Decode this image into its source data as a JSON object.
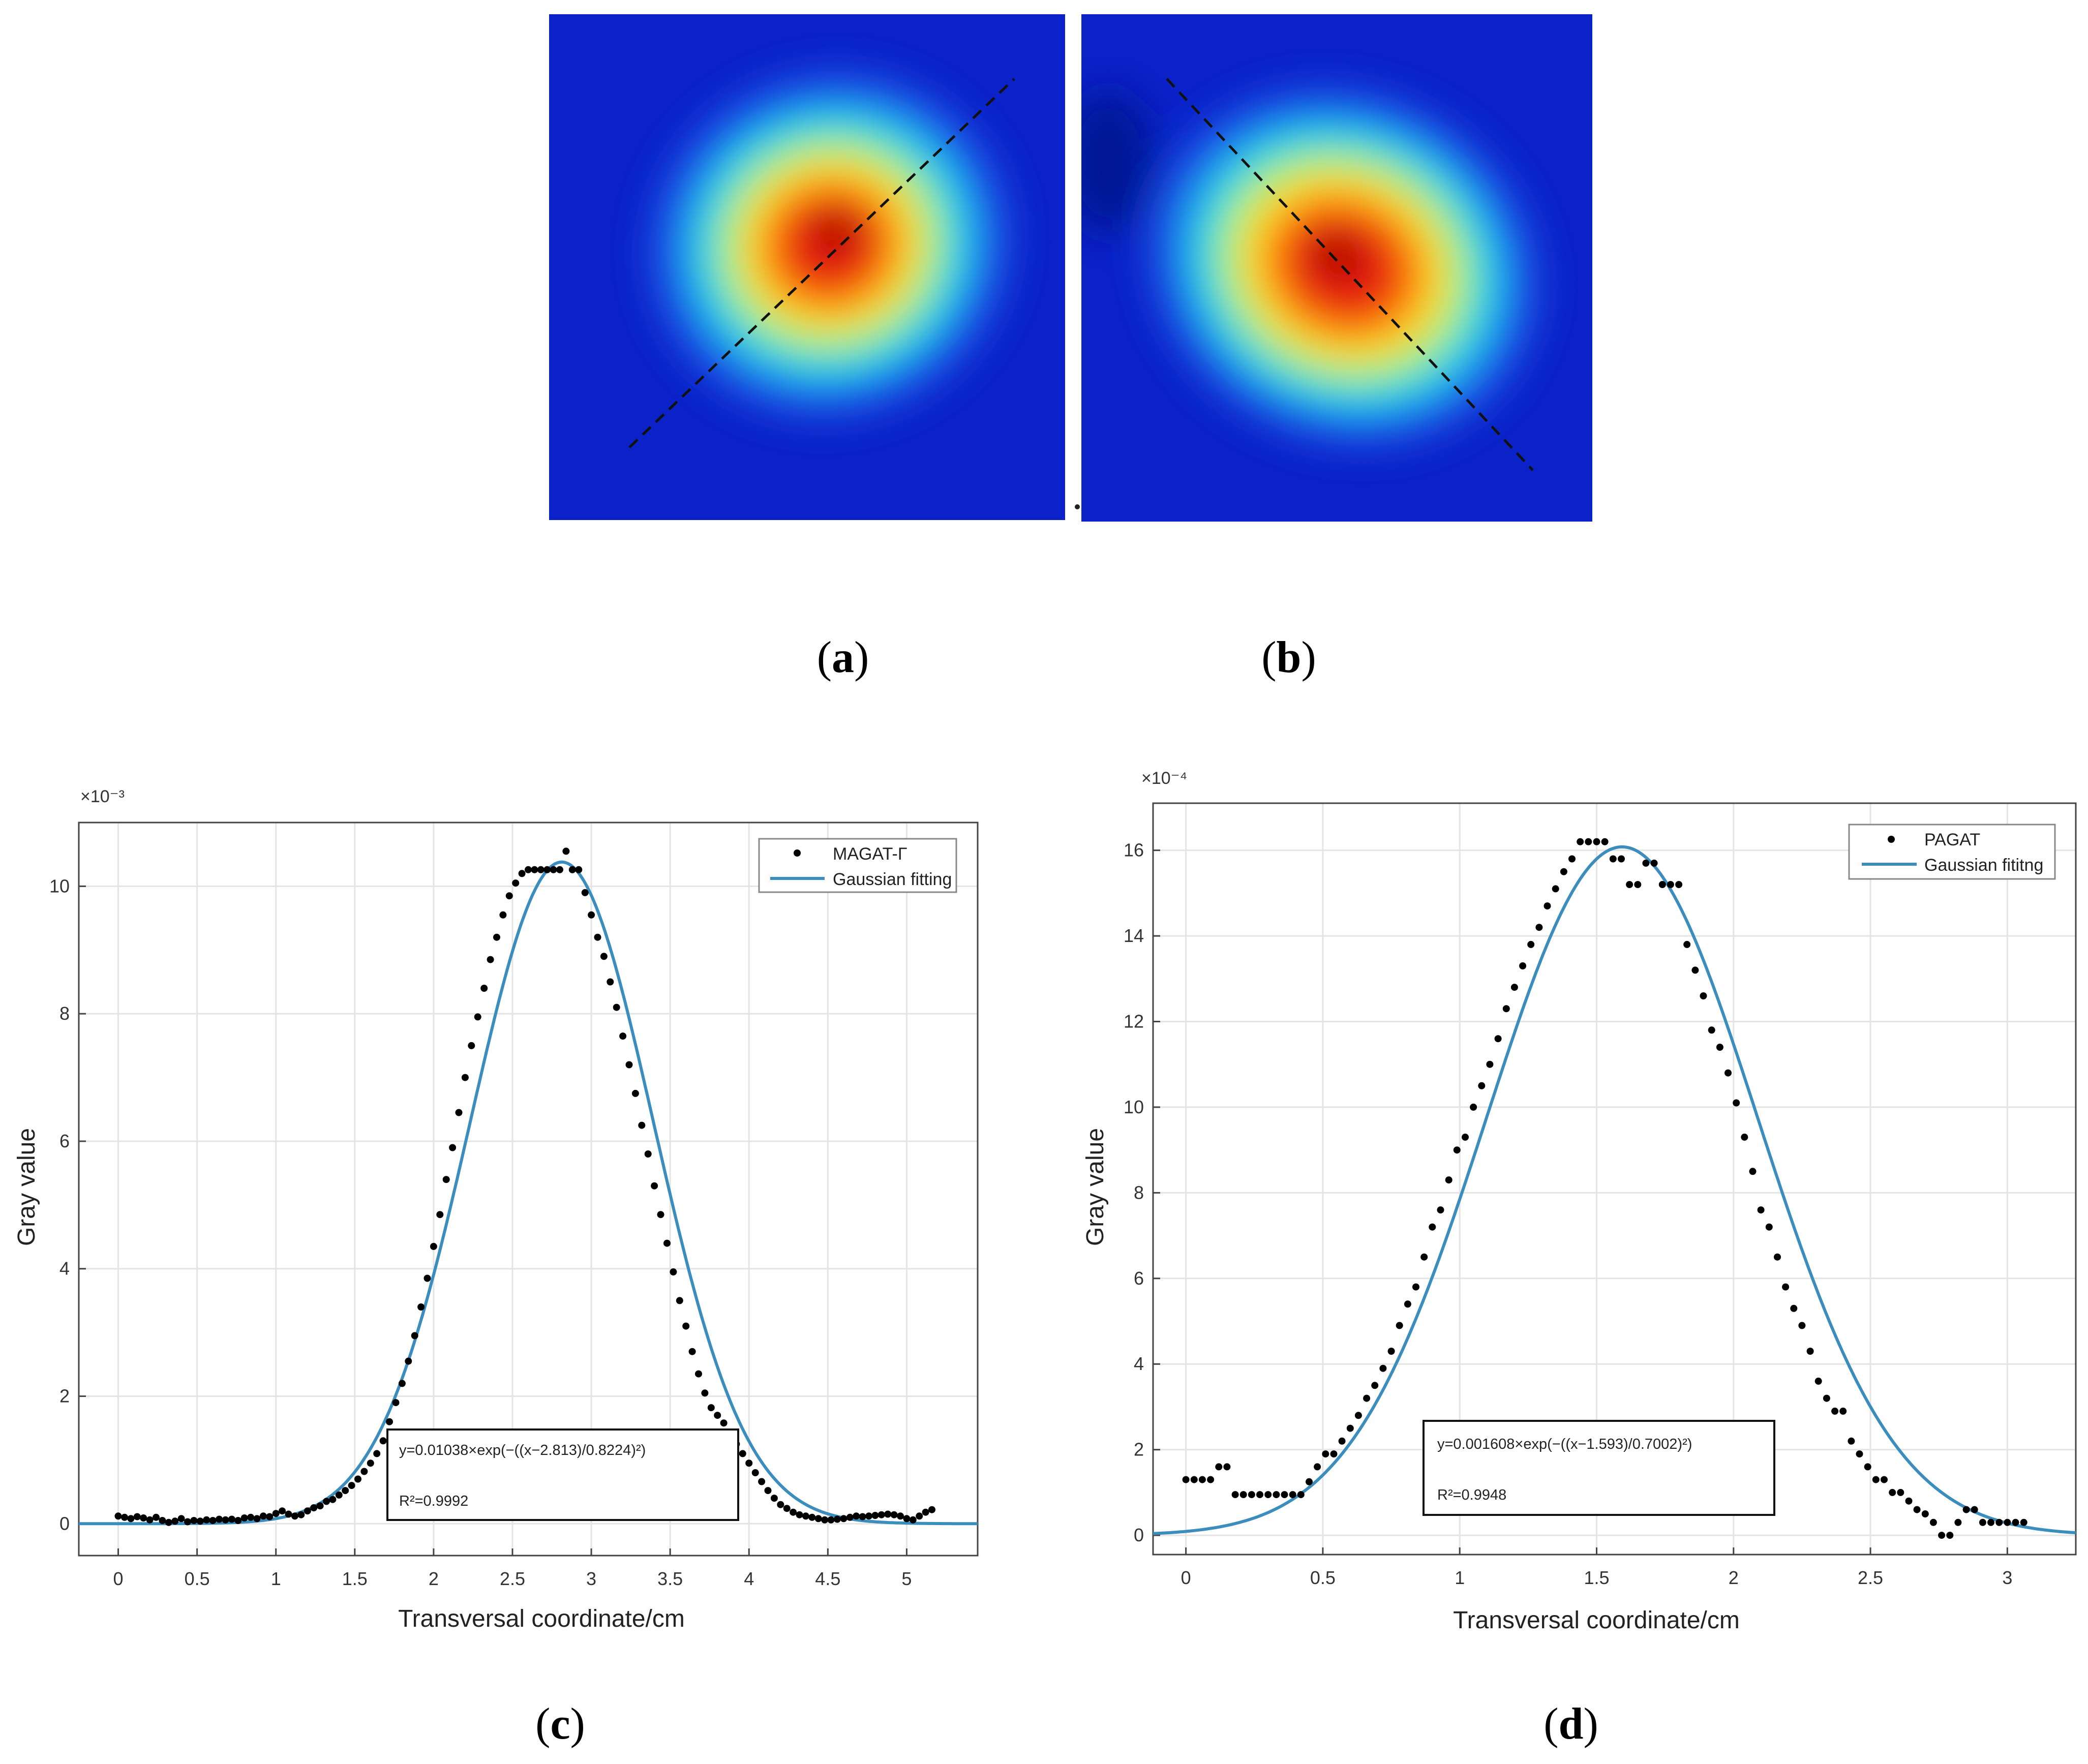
{
  "figure": {
    "panels": [
      {
        "id": "a",
        "label": "(a)",
        "letter": "a"
      },
      {
        "id": "b",
        "label": "(b)",
        "letter": "b"
      },
      {
        "id": "c",
        "label": "(c)",
        "letter": "c"
      },
      {
        "id": "d",
        "label": "(d)",
        "letter": "d"
      }
    ]
  },
  "heatmaps": [
    {
      "id": "a",
      "center": [
        0.545,
        0.455
      ],
      "radii": [
        0.25,
        0.28
      ],
      "rotation_deg": -20,
      "line": "diagonal-up"
    },
    {
      "id": "b",
      "center": [
        0.52,
        0.5
      ],
      "radii": [
        0.28,
        0.24
      ],
      "rotation_deg": 25,
      "line": "diagonal-down"
    }
  ],
  "colors": {
    "fit_line": "#3b8dbd",
    "points": "#000000",
    "grid": "#e4e4e4",
    "heat_low": "#0a22c8",
    "heat_high": "#cc0000"
  },
  "chart_data": [
    {
      "id": "c",
      "type": "scatter",
      "exponent_label": "×10⁻³",
      "xlabel": "Transversal coordinate/cm",
      "ylabel": "Gray value",
      "xlim": [
        -0.25,
        5.45
      ],
      "ylim": [
        -0.5,
        11.0
      ],
      "xticks": [
        0,
        0.5,
        1,
        1.5,
        2,
        2.5,
        3,
        3.5,
        4,
        4.5,
        5
      ],
      "xtick_labels": [
        "0",
        "0.5",
        "1",
        "1.5",
        "2",
        "2.5",
        "3",
        "3.5",
        "4",
        "4.5",
        "5"
      ],
      "yticks": [
        0,
        2,
        4,
        6,
        8,
        10
      ],
      "ytick_labels": [
        "0",
        "2",
        "4",
        "6",
        "8",
        "10"
      ],
      "legend": [
        "MAGAT-Γ",
        "Gaussian fitting"
      ],
      "equation": "y=0.01038×exp(−((x−2.813)/0.8224)²)",
      "r2": "R²=0.9992",
      "fit": {
        "a": 10.38,
        "b": 2.813,
        "c": 0.8224
      },
      "series": [
        {
          "name": "MAGAT-Γ",
          "x": [
            0.0,
            0.04,
            0.08,
            0.12,
            0.16,
            0.2,
            0.24,
            0.28,
            0.32,
            0.36,
            0.4,
            0.44,
            0.48,
            0.52,
            0.56,
            0.6,
            0.64,
            0.68,
            0.72,
            0.76,
            0.8,
            0.84,
            0.88,
            0.92,
            0.96,
            1.0,
            1.04,
            1.08,
            1.12,
            1.16,
            1.2,
            1.24,
            1.28,
            1.32,
            1.36,
            1.4,
            1.44,
            1.48,
            1.52,
            1.56,
            1.6,
            1.64,
            1.68,
            1.72,
            1.76,
            1.8,
            1.84,
            1.88,
            1.92,
            1.96,
            2.0,
            2.04,
            2.08,
            2.12,
            2.16,
            2.2,
            2.24,
            2.28,
            2.32,
            2.36,
            2.4,
            2.44,
            2.48,
            2.52,
            2.56,
            2.6,
            2.64,
            2.68,
            2.72,
            2.76,
            2.8,
            2.84,
            2.88,
            2.92,
            2.96,
            3.0,
            3.04,
            3.08,
            3.12,
            3.16,
            3.2,
            3.24,
            3.28,
            3.32,
            3.36,
            3.4,
            3.44,
            3.48,
            3.52,
            3.56,
            3.6,
            3.64,
            3.68,
            3.72,
            3.76,
            3.8,
            3.84,
            3.88,
            3.92,
            3.96,
            4.0,
            4.04,
            4.08,
            4.12,
            4.16,
            4.2,
            4.24,
            4.28,
            4.32,
            4.36,
            4.4,
            4.44,
            4.48,
            4.52,
            4.56,
            4.6,
            4.64,
            4.68,
            4.72,
            4.76,
            4.8,
            4.84,
            4.88,
            4.92,
            4.96,
            5.0,
            5.04,
            5.08,
            5.12,
            5.16
          ],
          "y": [
            0.12,
            0.1,
            0.08,
            0.11,
            0.09,
            0.06,
            0.1,
            0.05,
            0.02,
            0.04,
            0.08,
            0.03,
            0.05,
            0.04,
            0.06,
            0.05,
            0.07,
            0.06,
            0.07,
            0.05,
            0.09,
            0.1,
            0.08,
            0.12,
            0.11,
            0.16,
            0.2,
            0.15,
            0.12,
            0.14,
            0.2,
            0.25,
            0.28,
            0.35,
            0.38,
            0.45,
            0.52,
            0.6,
            0.7,
            0.82,
            0.95,
            1.1,
            1.3,
            1.6,
            1.9,
            2.2,
            2.55,
            2.95,
            3.4,
            3.85,
            4.35,
            4.85,
            5.4,
            5.9,
            6.45,
            7.0,
            7.5,
            7.95,
            8.4,
            8.85,
            9.2,
            9.55,
            9.85,
            10.05,
            10.2,
            10.26,
            10.26,
            10.26,
            10.26,
            10.26,
            10.26,
            10.55,
            10.26,
            10.26,
            9.9,
            9.55,
            9.2,
            8.9,
            8.5,
            8.1,
            7.65,
            7.2,
            6.75,
            6.25,
            5.8,
            5.3,
            4.85,
            4.4,
            3.95,
            3.5,
            3.1,
            2.7,
            2.35,
            2.05,
            1.82,
            1.7,
            1.58,
            1.42,
            1.25,
            1.1,
            0.95,
            0.8,
            0.66,
            0.52,
            0.4,
            0.3,
            0.24,
            0.18,
            0.14,
            0.12,
            0.1,
            0.08,
            0.06,
            0.06,
            0.07,
            0.08,
            0.1,
            0.12,
            0.11,
            0.12,
            0.13,
            0.14,
            0.15,
            0.14,
            0.12,
            0.08,
            0.06,
            0.12,
            0.18,
            0.22
          ]
        }
      ]
    },
    {
      "id": "d",
      "type": "scatter",
      "exponent_label": "×10⁻⁴",
      "xlabel": "Transversal coordinate/cm",
      "ylabel": "Gray value",
      "xlim": [
        -0.12,
        3.25
      ],
      "ylim": [
        -0.45,
        17.1
      ],
      "xticks": [
        0,
        0.5,
        1,
        1.5,
        2,
        2.5,
        3
      ],
      "xtick_labels": [
        "0",
        "0.5",
        "1",
        "1.5",
        "2",
        "2.5",
        "3"
      ],
      "yticks": [
        0,
        2,
        4,
        6,
        8,
        10,
        12,
        14,
        16
      ],
      "ytick_labels": [
        "0",
        "2",
        "4",
        "6",
        "8",
        "10",
        "12",
        "14",
        "16"
      ],
      "legend": [
        "PAGAT",
        "Gaussian fititng"
      ],
      "equation": "y=0.001608×exp(−((x−1.593)/0.7002)²)",
      "r2": "R²=0.9948",
      "fit": {
        "a": 16.08,
        "b": 1.593,
        "c": 0.7002
      },
      "series": [
        {
          "name": "PAGAT",
          "x": [
            0.0,
            0.03,
            0.06,
            0.09,
            0.12,
            0.15,
            0.18,
            0.21,
            0.24,
            0.27,
            0.3,
            0.33,
            0.36,
            0.39,
            0.42,
            0.45,
            0.48,
            0.51,
            0.54,
            0.57,
            0.6,
            0.63,
            0.66,
            0.69,
            0.72,
            0.75,
            0.78,
            0.81,
            0.84,
            0.87,
            0.9,
            0.93,
            0.96,
            0.99,
            1.02,
            1.05,
            1.08,
            1.11,
            1.14,
            1.17,
            1.2,
            1.23,
            1.26,
            1.29,
            1.32,
            1.35,
            1.38,
            1.41,
            1.44,
            1.47,
            1.5,
            1.53,
            1.56,
            1.59,
            1.62,
            1.65,
            1.68,
            1.71,
            1.74,
            1.77,
            1.8,
            1.83,
            1.86,
            1.89,
            1.92,
            1.95,
            1.98,
            2.01,
            2.04,
            2.07,
            2.1,
            2.13,
            2.16,
            2.19,
            2.22,
            2.25,
            2.28,
            2.31,
            2.34,
            2.37,
            2.4,
            2.43,
            2.46,
            2.49,
            2.52,
            2.55,
            2.58,
            2.61,
            2.64,
            2.67,
            2.7,
            2.73,
            2.76,
            2.79,
            2.82,
            2.85,
            2.88,
            2.91,
            2.94,
            2.97,
            3.0,
            3.03,
            3.06
          ],
          "y": [
            1.3,
            1.3,
            1.3,
            1.3,
            1.6,
            1.6,
            0.95,
            0.95,
            0.95,
            0.95,
            0.95,
            0.95,
            0.95,
            0.95,
            0.95,
            1.25,
            1.6,
            1.9,
            1.9,
            2.2,
            2.5,
            2.8,
            3.2,
            3.5,
            3.9,
            4.3,
            4.9,
            5.4,
            5.8,
            6.5,
            7.2,
            7.6,
            8.3,
            9.0,
            9.3,
            10.0,
            10.5,
            11.0,
            11.6,
            12.3,
            12.8,
            13.3,
            13.8,
            14.2,
            14.7,
            15.1,
            15.5,
            15.8,
            16.2,
            16.2,
            16.2,
            16.2,
            15.8,
            15.8,
            15.2,
            15.2,
            15.7,
            15.7,
            15.2,
            15.2,
            15.2,
            13.8,
            13.2,
            12.6,
            11.8,
            11.4,
            10.8,
            10.1,
            9.3,
            8.5,
            7.6,
            7.2,
            6.5,
            5.8,
            5.3,
            4.9,
            4.3,
            3.6,
            3.2,
            2.9,
            2.9,
            2.2,
            1.9,
            1.6,
            1.3,
            1.3,
            1.0,
            1.0,
            0.8,
            0.6,
            0.5,
            0.3,
            0.0,
            0.0,
            0.3,
            0.6,
            0.6,
            0.3,
            0.3,
            0.3,
            0.3,
            0.3,
            0.3
          ]
        }
      ]
    }
  ]
}
